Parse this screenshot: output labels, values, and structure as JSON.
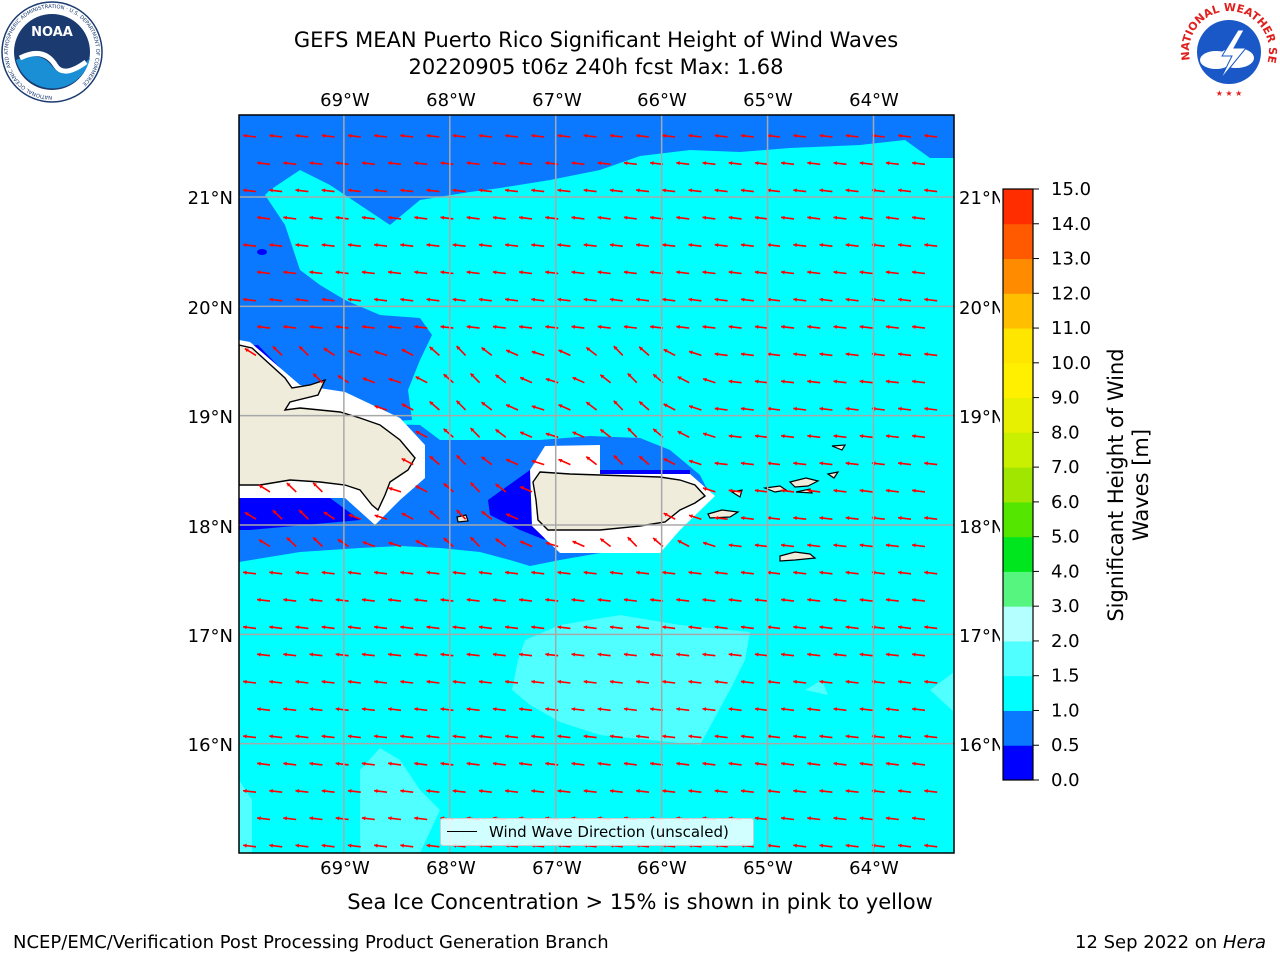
{
  "title": {
    "line1": "GEFS MEAN Puerto Rico Significant Height of Wind Waves",
    "line2": "20220905 t06z 240h fcst   Max: 1.68"
  },
  "map": {
    "lon_labels": [
      "69°W",
      "68°W",
      "67°W",
      "66°W",
      "65°W",
      "64°W"
    ],
    "lat_labels": [
      "21°N",
      "20°N",
      "19°N",
      "18°N",
      "17°N",
      "16°N"
    ],
    "lon_range": [
      -69.99,
      -63.24
    ],
    "lat_range": [
      15.0,
      21.75
    ],
    "legend_label": "Wind Wave Direction (unscaled)",
    "vector_color": "#ff0000",
    "land_color": "#efecdc"
  },
  "colorbar": {
    "label": "Significant Height of Wind Waves [m]",
    "ticks": [
      "0.0",
      "0.5",
      "1.0",
      "1.5",
      "2.0",
      "3.0",
      "4.0",
      "5.0",
      "6.0",
      "7.0",
      "8.0",
      "9.0",
      "10.0",
      "11.0",
      "12.0",
      "13.0",
      "14.0",
      "15.0"
    ],
    "colors": [
      "#0000ff",
      "#0a78ff",
      "#00ffff",
      "#50ffff",
      "#b4ffff",
      "#55f580",
      "#00e61e",
      "#55e600",
      "#a0e600",
      "#c8f000",
      "#e6f000",
      "#fff000",
      "#ffe600",
      "#ffbe00",
      "#ff8c00",
      "#ff5a00",
      "#ff2d00",
      "#ff0000"
    ]
  },
  "ice_note": "Sea Ice Concentration > 15% is shown in pink to yellow",
  "footer": {
    "left": "NCEP/EMC/Verification Post Processing Product Generation Branch",
    "right_prefix": "12 Sep 2022 on ",
    "right_host": "Hera"
  },
  "logos": {
    "noaa_text": "NOAA",
    "noaa_ring": "NATIONAL OCEANIC AND ATMOSPHERIC ADMINISTRATION · U.S. DEPARTMENT OF COMMERCE",
    "nws_ring": "NATIONAL WEATHER SERVICE"
  }
}
